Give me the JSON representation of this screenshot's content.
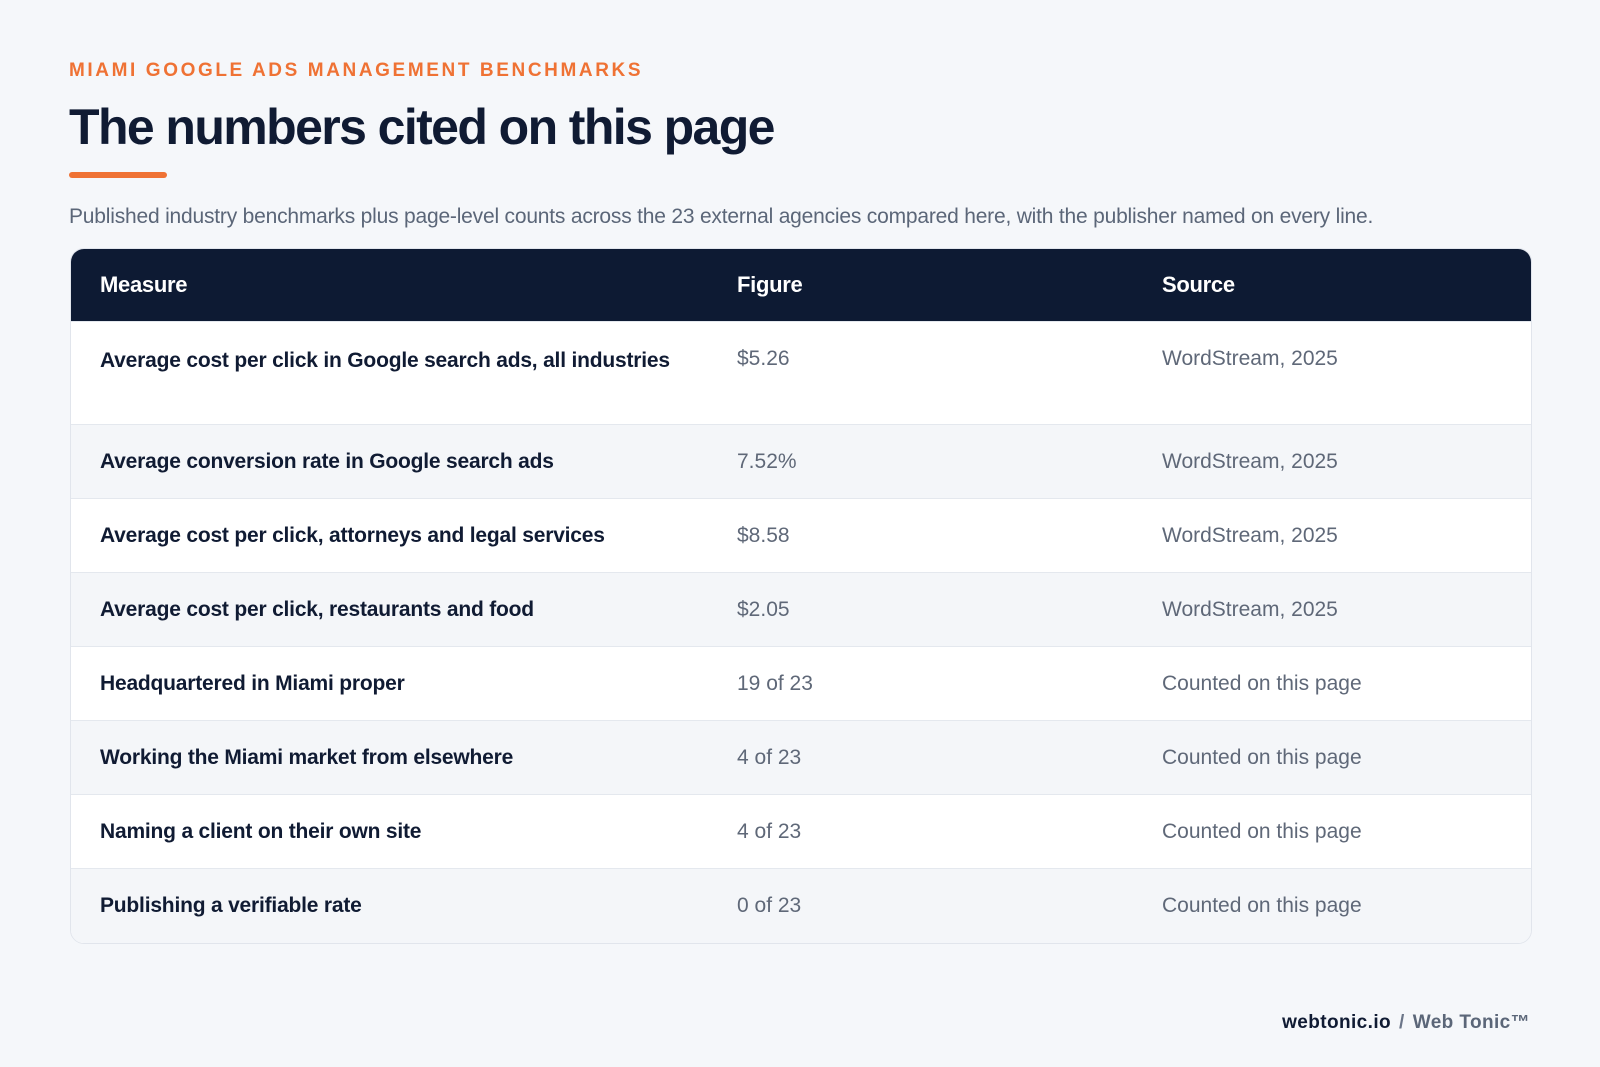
{
  "header": {
    "eyebrow": "MIAMI GOOGLE ADS MANAGEMENT BENCHMARKS",
    "title": "The numbers cited on this page",
    "subtitle": "Published industry benchmarks plus page-level counts across the 23 external agencies compared here, with the publisher named on every line."
  },
  "table": {
    "columns": [
      "Measure",
      "Figure",
      "Source"
    ],
    "rows": [
      {
        "measure": "Average cost per click in Google search ads, all industries",
        "figure": "$5.26",
        "source": "WordStream, 2025"
      },
      {
        "measure": "Average conversion rate in Google search ads",
        "figure": "7.52%",
        "source": "WordStream, 2025"
      },
      {
        "measure": "Average cost per click, attorneys and legal services",
        "figure": "$8.58",
        "source": "WordStream, 2025"
      },
      {
        "measure": "Average cost per click, restaurants and food",
        "figure": "$2.05",
        "source": "WordStream, 2025"
      },
      {
        "measure": "Headquartered in Miami proper",
        "figure": "19 of 23",
        "source": "Counted on this page"
      },
      {
        "measure": "Working the Miami market from elsewhere",
        "figure": "4 of 23",
        "source": "Counted on this page"
      },
      {
        "measure": "Naming a client on their own site",
        "figure": "4 of 23",
        "source": "Counted on this page"
      },
      {
        "measure": "Publishing a verifiable rate",
        "figure": "0 of 23",
        "source": "Counted on this page"
      }
    ]
  },
  "footer": {
    "site": "webtonic.io",
    "separator": "/",
    "brand": "Web Tonic™"
  },
  "colors": {
    "accent": "#ef7234",
    "header_bg": "#0d1a33",
    "page_bg": "#f5f7fa"
  }
}
